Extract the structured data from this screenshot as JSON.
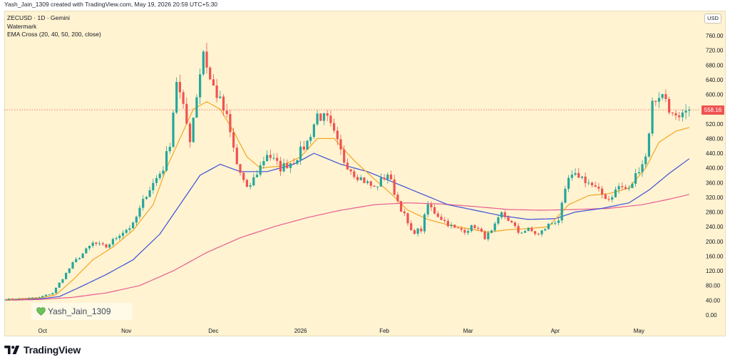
{
  "header": {
    "caption": "Yash_Jain_1309 created with TradingView.com, May 19, 2026 20:59 UTC+5:30"
  },
  "legend": {
    "symbol": "ZECUSD · 1D · Gemini",
    "watermark_label": "Watermark",
    "indicator": "EMA Cross (20, 40, 50, 200, close)"
  },
  "currency_button": "USD",
  "watermark_text": "Yash_Jain_1309",
  "brand": "TradingView",
  "last_price_tag": "558.16",
  "colors": {
    "up": "#26a69a",
    "down": "#ef5350",
    "ema_orange": "#f5a623",
    "ema_blue": "#3d4fd9",
    "ema_pink": "#e75c91",
    "background": "#fff3d1"
  },
  "chart_data": {
    "type": "candlestick",
    "y_axis": {
      "min": 0,
      "max": 760,
      "ticks": [
        760,
        720,
        680,
        640,
        600,
        560,
        520,
        480,
        440,
        400,
        360,
        320,
        280,
        240,
        200,
        160,
        120,
        80,
        40,
        0
      ],
      "tick_labels": [
        "760.00",
        "720.00",
        "680.00",
        "640.00",
        "600.00",
        "560.00",
        "520.00",
        "480.00",
        "440.00",
        "400.00",
        "360.00",
        "320.00",
        "280.00",
        "240.00",
        "200.00",
        "160.00",
        "120.00",
        "80.00",
        "40.00",
        "0.00"
      ]
    },
    "x_axis": {
      "labels": [
        "Oct",
        "Nov",
        "Dec",
        "2026",
        "Feb",
        "Mar",
        "Apr",
        "May"
      ]
    },
    "last_price": 558.16,
    "price_path_anchors": [
      [
        0,
        43
      ],
      [
        10,
        48
      ],
      [
        14,
        60
      ],
      [
        20,
        140
      ],
      [
        26,
        195
      ],
      [
        30,
        185
      ],
      [
        34,
        220
      ],
      [
        38,
        245
      ],
      [
        42,
        330
      ],
      [
        47,
        400
      ],
      [
        49,
        470
      ],
      [
        51,
        640
      ],
      [
        53,
        560
      ],
      [
        55,
        480
      ],
      [
        57,
        600
      ],
      [
        59,
        720
      ],
      [
        61,
        640
      ],
      [
        64,
        580
      ],
      [
        66,
        535
      ],
      [
        69,
        410
      ],
      [
        72,
        340
      ],
      [
        74,
        370
      ],
      [
        78,
        440
      ],
      [
        82,
        400
      ],
      [
        86,
        420
      ],
      [
        90,
        470
      ],
      [
        93,
        545
      ],
      [
        96,
        530
      ],
      [
        98,
        490
      ],
      [
        101,
        420
      ],
      [
        104,
        385
      ],
      [
        107,
        365
      ],
      [
        110,
        345
      ],
      [
        114,
        385
      ],
      [
        117,
        310
      ],
      [
        119,
        270
      ],
      [
        121,
        225
      ],
      [
        124,
        232
      ],
      [
        126,
        300
      ],
      [
        128,
        280
      ],
      [
        131,
        255
      ],
      [
        134,
        235
      ],
      [
        137,
        230
      ],
      [
        140,
        242
      ],
      [
        143,
        212
      ],
      [
        145,
        225
      ],
      [
        148,
        275
      ],
      [
        150,
        260
      ],
      [
        153,
        225
      ],
      [
        156,
        232
      ],
      [
        159,
        218
      ],
      [
        162,
        245
      ],
      [
        165,
        260
      ],
      [
        168,
        370
      ],
      [
        171,
        380
      ],
      [
        174,
        360
      ],
      [
        177,
        335
      ],
      [
        180,
        315
      ],
      [
        183,
        350
      ],
      [
        186,
        340
      ],
      [
        189,
        400
      ],
      [
        191,
        430
      ],
      [
        193,
        575
      ],
      [
        195,
        600
      ],
      [
        197,
        590
      ],
      [
        199,
        540
      ],
      [
        201,
        525
      ],
      [
        203,
        550
      ],
      [
        204,
        558
      ]
    ],
    "ema_20": [
      [
        0,
        42
      ],
      [
        10,
        46
      ],
      [
        15,
        55
      ],
      [
        20,
        95
      ],
      [
        26,
        150
      ],
      [
        32,
        185
      ],
      [
        38,
        230
      ],
      [
        44,
        300
      ],
      [
        48,
        400
      ],
      [
        52,
        480
      ],
      [
        56,
        560
      ],
      [
        60,
        580
      ],
      [
        64,
        560
      ],
      [
        68,
        500
      ],
      [
        72,
        430
      ],
      [
        76,
        400
      ],
      [
        82,
        405
      ],
      [
        88,
        430
      ],
      [
        93,
        480
      ],
      [
        98,
        480
      ],
      [
        104,
        420
      ],
      [
        110,
        370
      ],
      [
        115,
        330
      ],
      [
        120,
        285
      ],
      [
        126,
        260
      ],
      [
        132,
        245
      ],
      [
        138,
        235
      ],
      [
        144,
        225
      ],
      [
        150,
        232
      ],
      [
        156,
        235
      ],
      [
        162,
        240
      ],
      [
        168,
        300
      ],
      [
        174,
        325
      ],
      [
        180,
        330
      ],
      [
        186,
        345
      ],
      [
        191,
        400
      ],
      [
        195,
        470
      ],
      [
        200,
        500
      ],
      [
        204,
        510
      ]
    ],
    "ema_50": [
      [
        0,
        42
      ],
      [
        10,
        44
      ],
      [
        16,
        50
      ],
      [
        22,
        75
      ],
      [
        30,
        110
      ],
      [
        38,
        150
      ],
      [
        46,
        220
      ],
      [
        52,
        300
      ],
      [
        58,
        380
      ],
      [
        64,
        410
      ],
      [
        70,
        390
      ],
      [
        78,
        390
      ],
      [
        86,
        410
      ],
      [
        92,
        440
      ],
      [
        100,
        410
      ],
      [
        108,
        390
      ],
      [
        116,
        360
      ],
      [
        124,
        330
      ],
      [
        132,
        300
      ],
      [
        140,
        285
      ],
      [
        148,
        270
      ],
      [
        156,
        260
      ],
      [
        164,
        262
      ],
      [
        170,
        280
      ],
      [
        178,
        290
      ],
      [
        186,
        305
      ],
      [
        192,
        340
      ],
      [
        198,
        385
      ],
      [
        204,
        425
      ]
    ],
    "ema_200": [
      [
        0,
        40
      ],
      [
        10,
        42
      ],
      [
        20,
        48
      ],
      [
        30,
        60
      ],
      [
        40,
        80
      ],
      [
        50,
        120
      ],
      [
        60,
        170
      ],
      [
        70,
        210
      ],
      [
        80,
        240
      ],
      [
        90,
        265
      ],
      [
        100,
        285
      ],
      [
        110,
        300
      ],
      [
        120,
        305
      ],
      [
        130,
        302
      ],
      [
        140,
        295
      ],
      [
        150,
        287
      ],
      [
        160,
        285
      ],
      [
        170,
        287
      ],
      [
        180,
        290
      ],
      [
        190,
        300
      ],
      [
        198,
        315
      ],
      [
        204,
        328
      ]
    ]
  }
}
